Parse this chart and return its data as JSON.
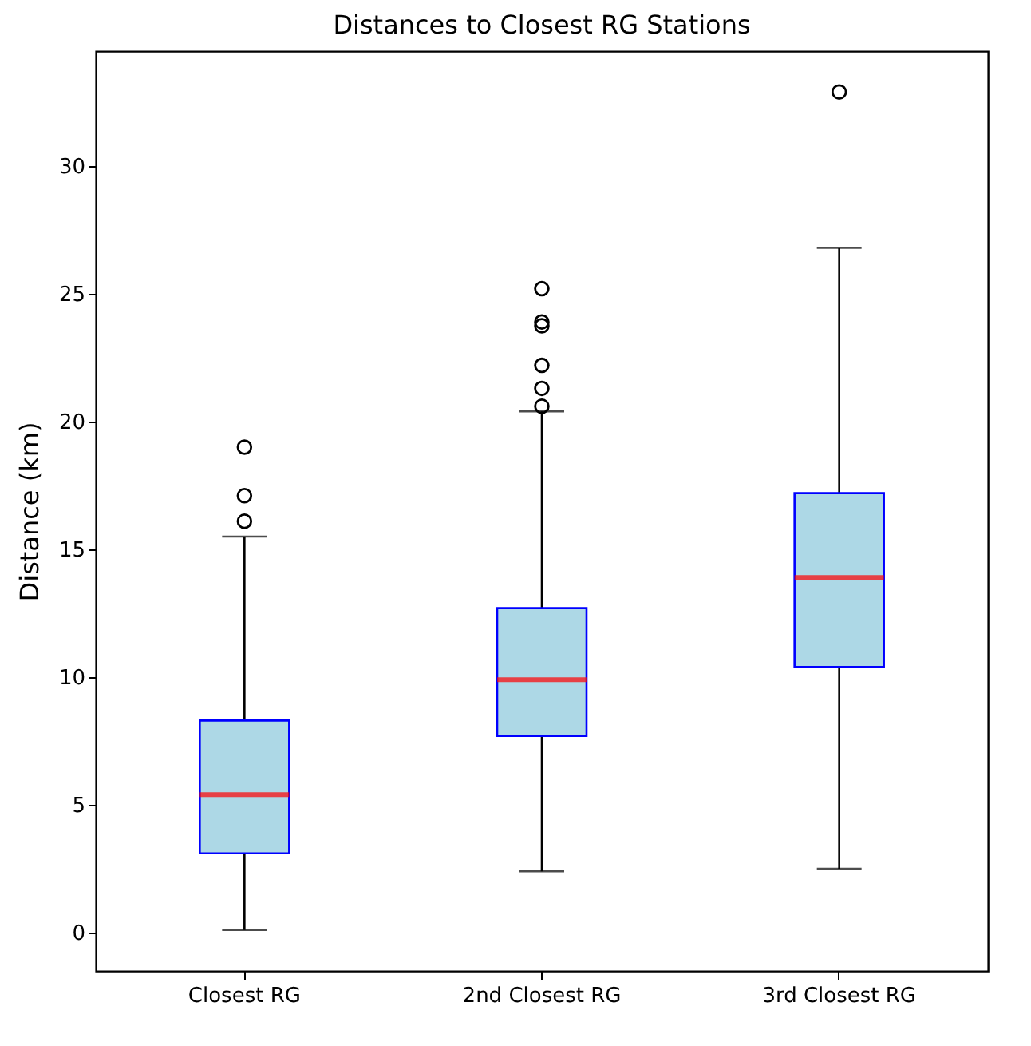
{
  "chart_data": {
    "type": "box",
    "title": "Distances to Closest RG Stations",
    "ylabel": "Distance (km)",
    "categories": [
      "Closest RG",
      "2nd Closest RG",
      "3rd Closest RG"
    ],
    "series": [
      {
        "color": "#add8e6",
        "boxes": [
          {
            "low": 0.1,
            "q1": 3.1,
            "median": 5.4,
            "q3": 8.3,
            "high": 15.5,
            "outliers": [
              16.1,
              17.1,
              19.0
            ]
          },
          {
            "low": 2.4,
            "q1": 7.7,
            "median": 9.9,
            "q3": 12.7,
            "high": 20.4,
            "outliers": [
              20.6,
              21.3,
              22.2,
              23.75,
              23.9,
              25.2
            ]
          },
          {
            "low": 2.5,
            "q1": 10.4,
            "median": 13.9,
            "q3": 17.2,
            "high": 26.8,
            "outliers": [
              32.9
            ]
          }
        ]
      }
    ],
    "ylim": [
      -1.5,
      34.5
    ],
    "yticks": [
      0,
      5,
      10,
      15,
      20,
      25,
      30
    ],
    "grid": false
  }
}
